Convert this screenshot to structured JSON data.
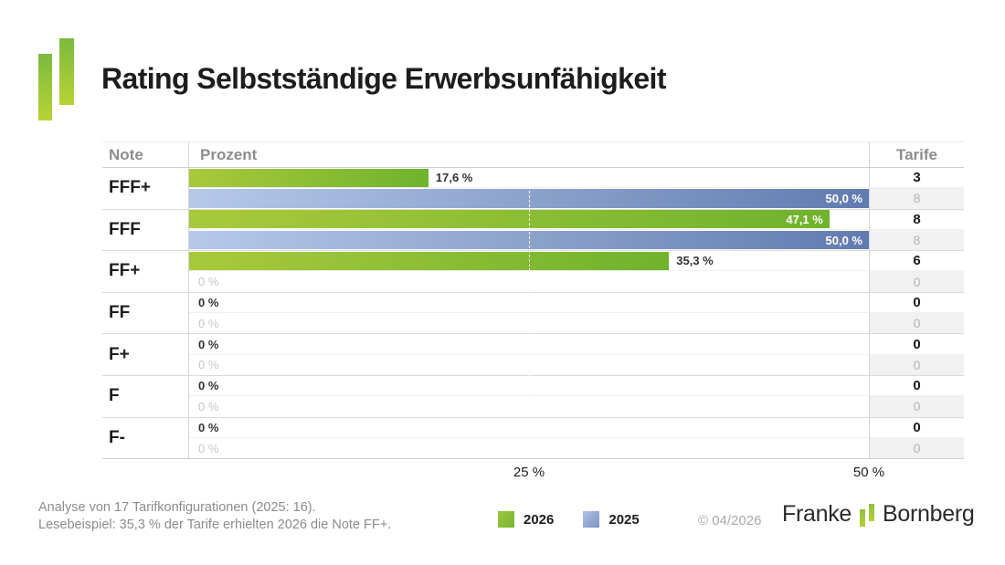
{
  "header": {
    "title": "Rating Selbstständige Erwerbsunfähigkeit"
  },
  "table": {
    "headers": {
      "note": "Note",
      "prozent": "Prozent",
      "tarife": "Tarife"
    },
    "rows": [
      {
        "note": "FFF+",
        "y2026": {
          "value": 17.6,
          "label": "17,6 %",
          "tarife": "3"
        },
        "y2025": {
          "value": 50.0,
          "label": "50,0 %",
          "tarife": "8"
        }
      },
      {
        "note": "FFF",
        "y2026": {
          "value": 47.1,
          "label": "47,1 %",
          "tarife": "8"
        },
        "y2025": {
          "value": 50.0,
          "label": "50,0 %",
          "tarife": "8"
        }
      },
      {
        "note": "FF+",
        "y2026": {
          "value": 35.3,
          "label": "35,3 %",
          "tarife": "6"
        },
        "y2025": {
          "value": 0,
          "label": "0 %",
          "tarife": "0"
        }
      },
      {
        "note": "FF",
        "y2026": {
          "value": 0,
          "label": "0 %",
          "tarife": "0"
        },
        "y2025": {
          "value": 0,
          "label": "0 %",
          "tarife": "0"
        }
      },
      {
        "note": "F+",
        "y2026": {
          "value": 0,
          "label": "0 %",
          "tarife": "0"
        },
        "y2025": {
          "value": 0,
          "label": "0 %",
          "tarife": "0"
        }
      },
      {
        "note": "F",
        "y2026": {
          "value": 0,
          "label": "0 %",
          "tarife": "0"
        },
        "y2025": {
          "value": 0,
          "label": "0 %",
          "tarife": "0"
        }
      },
      {
        "note": "F-",
        "y2026": {
          "value": 0,
          "label": "0 %",
          "tarife": "0"
        },
        "y2025": {
          "value": 0,
          "label": "0 %",
          "tarife": "0"
        }
      }
    ]
  },
  "axis": {
    "max": 50,
    "tick_25": "25 %",
    "tick_50": "50 %"
  },
  "legend": {
    "y2026": "2026",
    "y2025": "2025"
  },
  "footer": {
    "line1": "Analyse von 17 Tarifkonfigurationen (2025: 16).",
    "line2": "Lesebeispiel: 35,3 % der Tarife erhielten 2026 die Note FF+.",
    "copyright": "© 04/2026",
    "brand_left": "Franke",
    "brand_right": "Bornberg"
  },
  "colors": {
    "green_start": "#a9c93c",
    "green_end": "#6fb32c",
    "blue_start": "#b6c9e9",
    "blue_end": "#617bb0",
    "logo_green_top": "#7cba3e",
    "logo_green_bottom": "#b8d334"
  },
  "chart_data": {
    "type": "bar",
    "orientation": "horizontal",
    "title": "Rating Selbstständige Erwerbsunfähigkeit",
    "categories": [
      "FFF+",
      "FFF",
      "FF+",
      "FF",
      "F+",
      "F",
      "F-"
    ],
    "series": [
      {
        "name": "2026",
        "values_percent": [
          17.6,
          47.1,
          35.3,
          0,
          0,
          0,
          0
        ],
        "tarife": [
          3,
          8,
          6,
          0,
          0,
          0,
          0
        ],
        "color": "#7db62f"
      },
      {
        "name": "2025",
        "values_percent": [
          50.0,
          50.0,
          0,
          0,
          0,
          0,
          0
        ],
        "tarife": [
          8,
          8,
          0,
          0,
          0,
          0,
          0
        ],
        "color": "#7b92c4"
      }
    ],
    "xlabel": "Prozent",
    "xlim": [
      0,
      50
    ],
    "xticks": [
      25,
      50
    ],
    "gridline_dashed_at": 25,
    "legend_position": "bottom"
  }
}
